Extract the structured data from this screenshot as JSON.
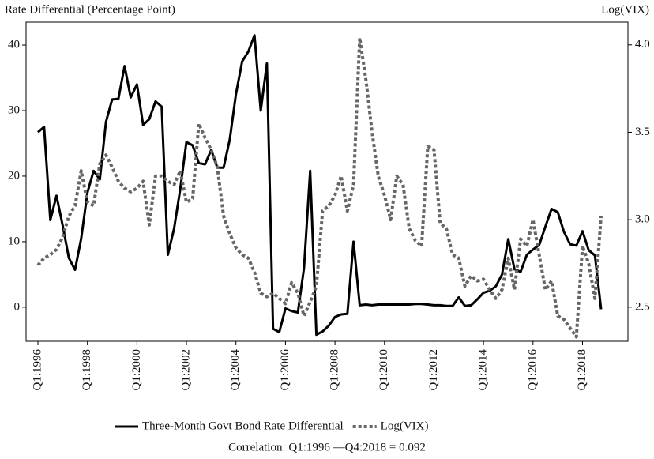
{
  "chart_data": {
    "type": "line",
    "y_label": "Rate Differential (Percentage Point)",
    "y2_label": "Log(VIX)",
    "footnote": "Correlation: Q1:1996 —Q4:2018 = 0.092",
    "categories": [
      "Q1:1996",
      null,
      null,
      null,
      null,
      null,
      null,
      null,
      "Q1:1998",
      null,
      null,
      null,
      null,
      null,
      null,
      null,
      "Q1:2000",
      null,
      null,
      null,
      null,
      null,
      null,
      null,
      "Q1:2002",
      null,
      null,
      null,
      null,
      null,
      null,
      null,
      "Q1:2004",
      null,
      null,
      null,
      null,
      null,
      null,
      null,
      "Q1:2006",
      null,
      null,
      null,
      null,
      null,
      null,
      null,
      "Q1:2008",
      null,
      null,
      null,
      null,
      null,
      null,
      null,
      "Q1:2010",
      null,
      null,
      null,
      null,
      null,
      null,
      null,
      "Q1:2012",
      null,
      null,
      null,
      null,
      null,
      null,
      null,
      "Q1:2014",
      null,
      null,
      null,
      null,
      null,
      null,
      null,
      "Q1:2016",
      null,
      null,
      null,
      null,
      null,
      null,
      null,
      "Q1:2018",
      null,
      null,
      null
    ],
    "series": [
      {
        "name": "Three-Month Govt Bond Rate Differential",
        "color": "#000000",
        "axis": "y",
        "values": [
          26.7,
          27.5,
          13.3,
          17,
          12.5,
          7.5,
          5.7,
          10.5,
          17.5,
          20.8,
          19.5,
          28.3,
          31.7,
          31.8,
          36.8,
          32,
          34,
          27.8,
          28.7,
          31.4,
          30.6,
          8,
          12,
          18,
          25.2,
          24.7,
          22,
          21.8,
          24,
          21.3,
          21.3,
          25.6,
          32.5,
          37.5,
          39,
          41.5,
          30,
          37.2,
          -3.3,
          -3.8,
          -0.2,
          -0.6,
          -0.8,
          6,
          20.8,
          -4.2,
          -3.7,
          -2.8,
          -1.5,
          -1.1,
          -1,
          10,
          0.3,
          0.4,
          0.3,
          0.4,
          0.4,
          0.4,
          0.4,
          0.4,
          0.4,
          0.5,
          0.5,
          0.4,
          0.3,
          0.3,
          0.2,
          0.2,
          1.5,
          0.2,
          0.3,
          1.2,
          2.2,
          2.5,
          3.2,
          5,
          10.4,
          5.8,
          5.4,
          8,
          8.8,
          9.5,
          12.3,
          15,
          14.5,
          11.5,
          9.6,
          9.4,
          11.6,
          8.7,
          7.9,
          -0.3
        ]
      },
      {
        "name": "Log(VIX)",
        "color": "#666666",
        "axis": "y2",
        "dashed": true,
        "values": [
          2.74,
          2.78,
          2.8,
          2.83,
          2.9,
          3.02,
          3.08,
          3.28,
          3.1,
          3.08,
          3.32,
          3.37,
          3.3,
          3.22,
          3.18,
          3.16,
          3.18,
          3.22,
          2.97,
          3.25,
          3.25,
          3.22,
          3.2,
          3.28,
          3.1,
          3.12,
          3.55,
          3.47,
          3.4,
          3.3,
          3.02,
          2.92,
          2.84,
          2.8,
          2.78,
          2.7,
          2.58,
          2.56,
          2.58,
          2.55,
          2.52,
          2.64,
          2.58,
          2.45,
          2.53,
          2.62,
          3.05,
          3.08,
          3.14,
          3.25,
          3.05,
          3.2,
          4.04,
          3.8,
          3.5,
          3.25,
          3.14,
          3,
          3.25,
          3.2,
          2.95,
          2.88,
          2.85,
          3.42,
          3.4,
          2.98,
          2.95,
          2.8,
          2.78,
          2.62,
          2.68,
          2.65,
          2.66,
          2.6,
          2.55,
          2.6,
          2.78,
          2.6,
          2.89,
          2.85,
          3,
          2.8,
          2.6,
          2.65,
          2.45,
          2.43,
          2.38,
          2.33,
          2.85,
          2.75,
          2.55,
          3.02
        ]
      }
    ],
    "ylim": [
      -5.2,
      43.5
    ],
    "yticks": [
      0,
      10,
      20,
      30,
      40
    ],
    "y2lim": [
      2.305,
      4.13
    ],
    "y2ticks": [
      2.5,
      {
        "value": 3,
        "label": "3.0"
      },
      3.5,
      {
        "value": 4,
        "label": "4.0"
      }
    ]
  }
}
